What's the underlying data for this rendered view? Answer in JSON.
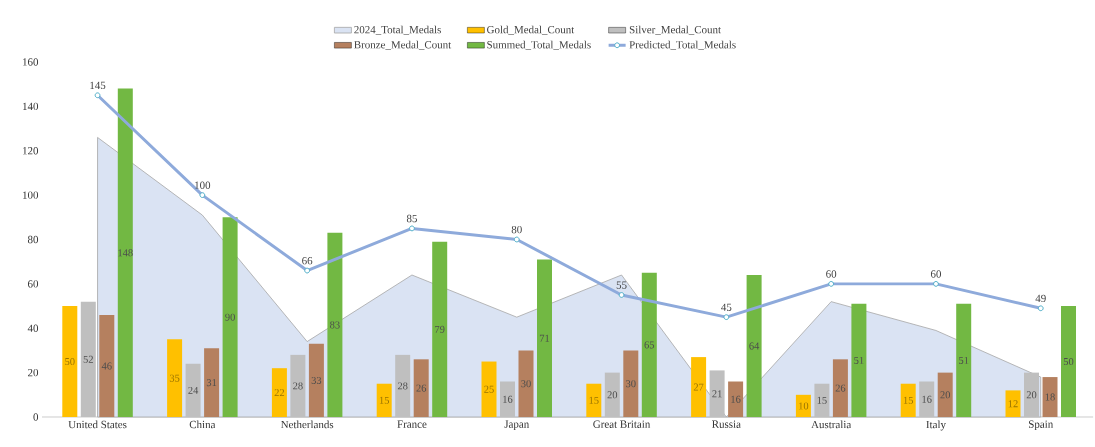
{
  "chart_data": {
    "type": "bar",
    "categories": [
      "United States",
      "China",
      "Netherlands",
      "France",
      "Japan",
      "Great Britain",
      "Russia",
      "Australia",
      "Italy",
      "Spain"
    ],
    "series": [
      {
        "name": "2024_Total_Medals",
        "type": "area",
        "color": "#dae3f3",
        "values": [
          126,
          91,
          34,
          64,
          45,
          64,
          0,
          52,
          39,
          18
        ]
      },
      {
        "name": "Gold_Medal_Count",
        "color": "#ffc000",
        "data_labels": true,
        "values": [
          50,
          35,
          22,
          15,
          25,
          15,
          27,
          10,
          15,
          12
        ]
      },
      {
        "name": "Silver_Medal_Count",
        "color": "#bfbfbf",
        "data_labels": true,
        "values": [
          52,
          24,
          28,
          28,
          16,
          20,
          21,
          15,
          16,
          20
        ]
      },
      {
        "name": "Bronze_Medal_Count",
        "color": "#b5805f",
        "data_labels": true,
        "values": [
          46,
          31,
          33,
          26,
          30,
          30,
          16,
          26,
          20,
          18
        ]
      },
      {
        "name": "Summed_Total_Medals",
        "color": "#72b843",
        "data_labels": true,
        "values": [
          148,
          90,
          83,
          79,
          71,
          65,
          64,
          51,
          51,
          50
        ]
      },
      {
        "name": "Predicted_Total_Medals",
        "type": "line",
        "color": "#8eaadb",
        "marker": "circle",
        "data_labels": true,
        "values": [
          145,
          100,
          66,
          85,
          80,
          55,
          45,
          60,
          60,
          49
        ]
      }
    ],
    "ylim": [
      0,
      160
    ],
    "yticks": [
      0,
      20,
      40,
      60,
      80,
      100,
      120,
      140,
      160
    ],
    "grid": false,
    "legend": "top"
  }
}
